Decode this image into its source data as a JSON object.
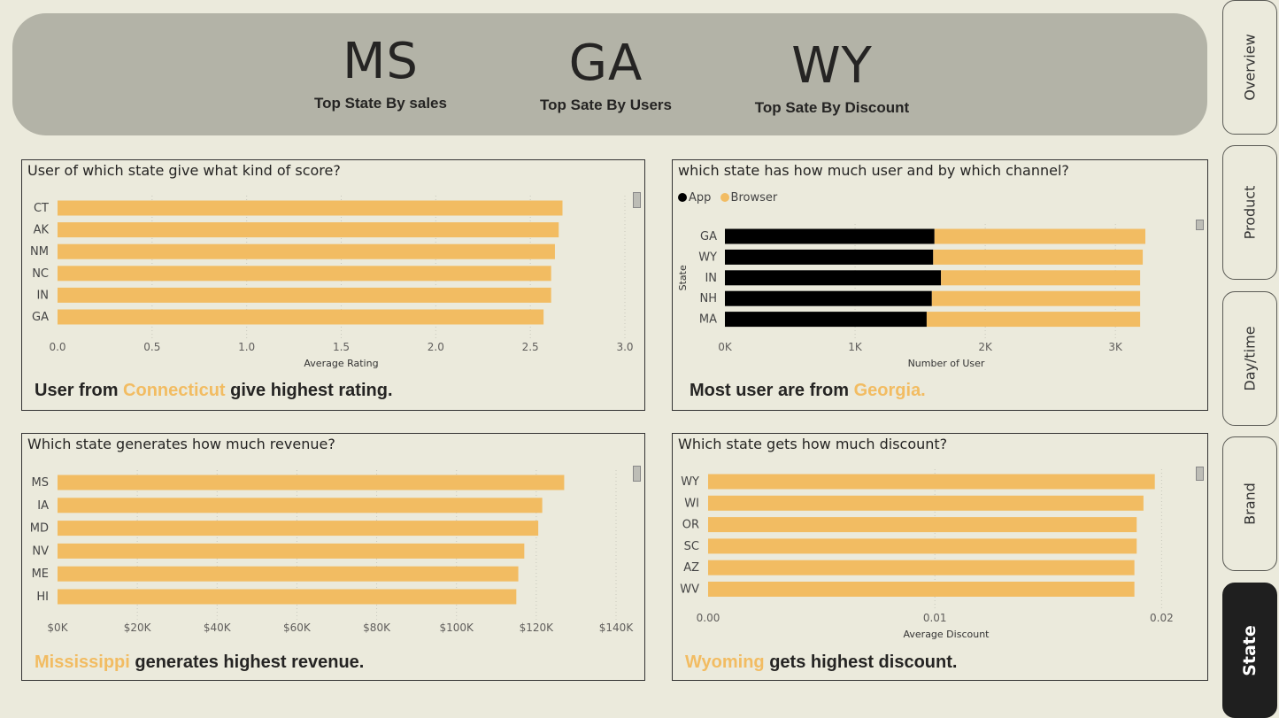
{
  "kpis": [
    {
      "value": "MS",
      "label": "Top State By sales"
    },
    {
      "value": "GA",
      "label": "Top Sate By Users"
    },
    {
      "value": "WY",
      "label": "Top Sate By Discount"
    }
  ],
  "nav": {
    "items": [
      "Overview",
      "Product",
      "Day/time",
      "Brand",
      "State"
    ],
    "active": "State"
  },
  "colors": {
    "bar": "#F2BC62",
    "app": "#000000",
    "browser": "#F2BC62",
    "banner": "#B3B3A7",
    "background": "#EBEADC"
  },
  "panels": {
    "rating": {
      "title": "User of which state give what kind of score?",
      "insight_pre": "User from ",
      "insight_hl": "Connecticut",
      "insight_post": " give highest rating."
    },
    "users": {
      "title": "which state has how much user and by which channel?",
      "legend": [
        "App",
        "Browser"
      ],
      "insight_pre": "Most user are from ",
      "insight_hl": "Georgia.",
      "insight_post": ""
    },
    "revenue": {
      "title": "Which state generates how much revenue?",
      "insight_pre": "",
      "insight_hl": "Mississippi",
      "insight_post": " generates highest revenue."
    },
    "discount": {
      "title": "Which state gets how much discount?",
      "insight_pre": "",
      "insight_hl": "Wyoming",
      "insight_post": " gets highest discount."
    }
  },
  "chart_data": [
    {
      "type": "bar",
      "orientation": "horizontal",
      "categories": [
        "CT",
        "AK",
        "NM",
        "NC",
        "IN",
        "GA"
      ],
      "values": [
        2.67,
        2.65,
        2.63,
        2.61,
        2.61,
        2.57
      ],
      "xlabel": "Average Rating",
      "xlim": [
        0,
        3.0
      ],
      "ticks": [
        0.0,
        0.5,
        1.0,
        1.5,
        2.0,
        2.5,
        3.0
      ],
      "tick_labels": [
        "0.0",
        "0.5",
        "1.0",
        "1.5",
        "2.0",
        "2.5",
        "3.0"
      ]
    },
    {
      "type": "bar",
      "orientation": "horizontal",
      "stacked": true,
      "categories": [
        "GA",
        "WY",
        "IN",
        "NH",
        "MA"
      ],
      "series": [
        {
          "name": "App",
          "values": [
            1610,
            1600,
            1660,
            1590,
            1550
          ]
        },
        {
          "name": "Browser",
          "values": [
            1620,
            1610,
            1530,
            1600,
            1640
          ]
        }
      ],
      "xlabel": "Number of User",
      "ylabel": "State",
      "xlim": [
        0,
        3400
      ],
      "ticks": [
        0,
        1000,
        2000,
        3000
      ],
      "tick_labels": [
        "0K",
        "1K",
        "2K",
        "3K"
      ],
      "legend_position": "top-left"
    },
    {
      "type": "bar",
      "orientation": "horizontal",
      "categories": [
        "MS",
        "IA",
        "MD",
        "NV",
        "ME",
        "HI"
      ],
      "values": [
        127000,
        121500,
        120500,
        117000,
        115500,
        115000
      ],
      "xlim": [
        0,
        140000
      ],
      "ticks": [
        0,
        20000,
        40000,
        60000,
        80000,
        100000,
        120000,
        140000
      ],
      "tick_labels": [
        "$0K",
        "$20K",
        "$40K",
        "$60K",
        "$80K",
        "$100K",
        "$120K",
        "$140K"
      ]
    },
    {
      "type": "bar",
      "orientation": "horizontal",
      "categories": [
        "WY",
        "WI",
        "OR",
        "SC",
        "AZ",
        "WV"
      ],
      "values": [
        0.0197,
        0.0192,
        0.0189,
        0.0189,
        0.0188,
        0.0188
      ],
      "xlabel": "Average Discount",
      "xlim": [
        0,
        0.021
      ],
      "ticks": [
        0,
        0.01,
        0.02
      ],
      "tick_labels": [
        "0.00",
        "0.01",
        "0.02"
      ]
    }
  ]
}
